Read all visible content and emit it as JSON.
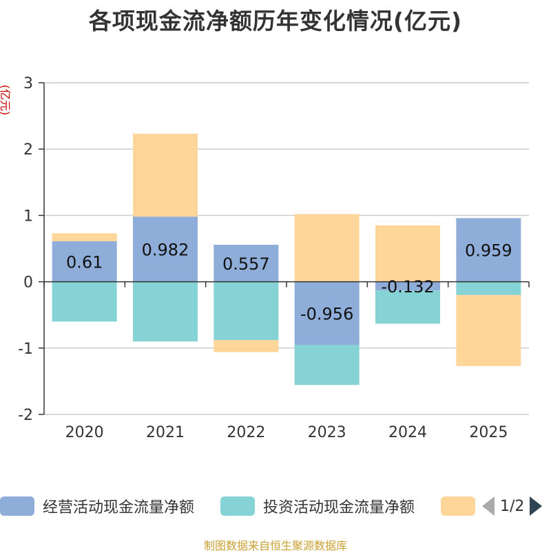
{
  "title": "各项现金流净额历年变化情况(亿元)",
  "source_note": "制图数据来自恒生聚源数据库",
  "legend_pager": "1/2",
  "chart_data": {
    "type": "bar",
    "stacked": true,
    "title": "各项现金流净额历年变化情况(亿元)",
    "ylabel": "(亿元)",
    "xlabel": "",
    "ylim": [
      -2,
      3
    ],
    "yticks": [
      3,
      2,
      1,
      0,
      -1,
      -2
    ],
    "grid": true,
    "legend_position": "bottom",
    "categories": [
      "2020",
      "2021",
      "2022",
      "2023",
      "2024",
      "2025"
    ],
    "series": [
      {
        "name": "经营活动现金流量净额",
        "color": "#8eadd8",
        "values": [
          0.61,
          0.982,
          0.557,
          -0.956,
          -0.132,
          0.959
        ],
        "labels": [
          "0.61",
          "0.982",
          "0.557",
          "-0.956",
          "-0.132",
          "0.959"
        ]
      },
      {
        "name": "投资活动现金流量净额",
        "color": "#86d3d6",
        "values": [
          -0.6,
          -0.9,
          -0.88,
          -0.6,
          -0.5,
          -0.2
        ]
      },
      {
        "name": "",
        "color": "#fed699",
        "values": [
          0.12,
          1.25,
          -0.18,
          1.02,
          0.85,
          -1.07
        ]
      }
    ]
  }
}
